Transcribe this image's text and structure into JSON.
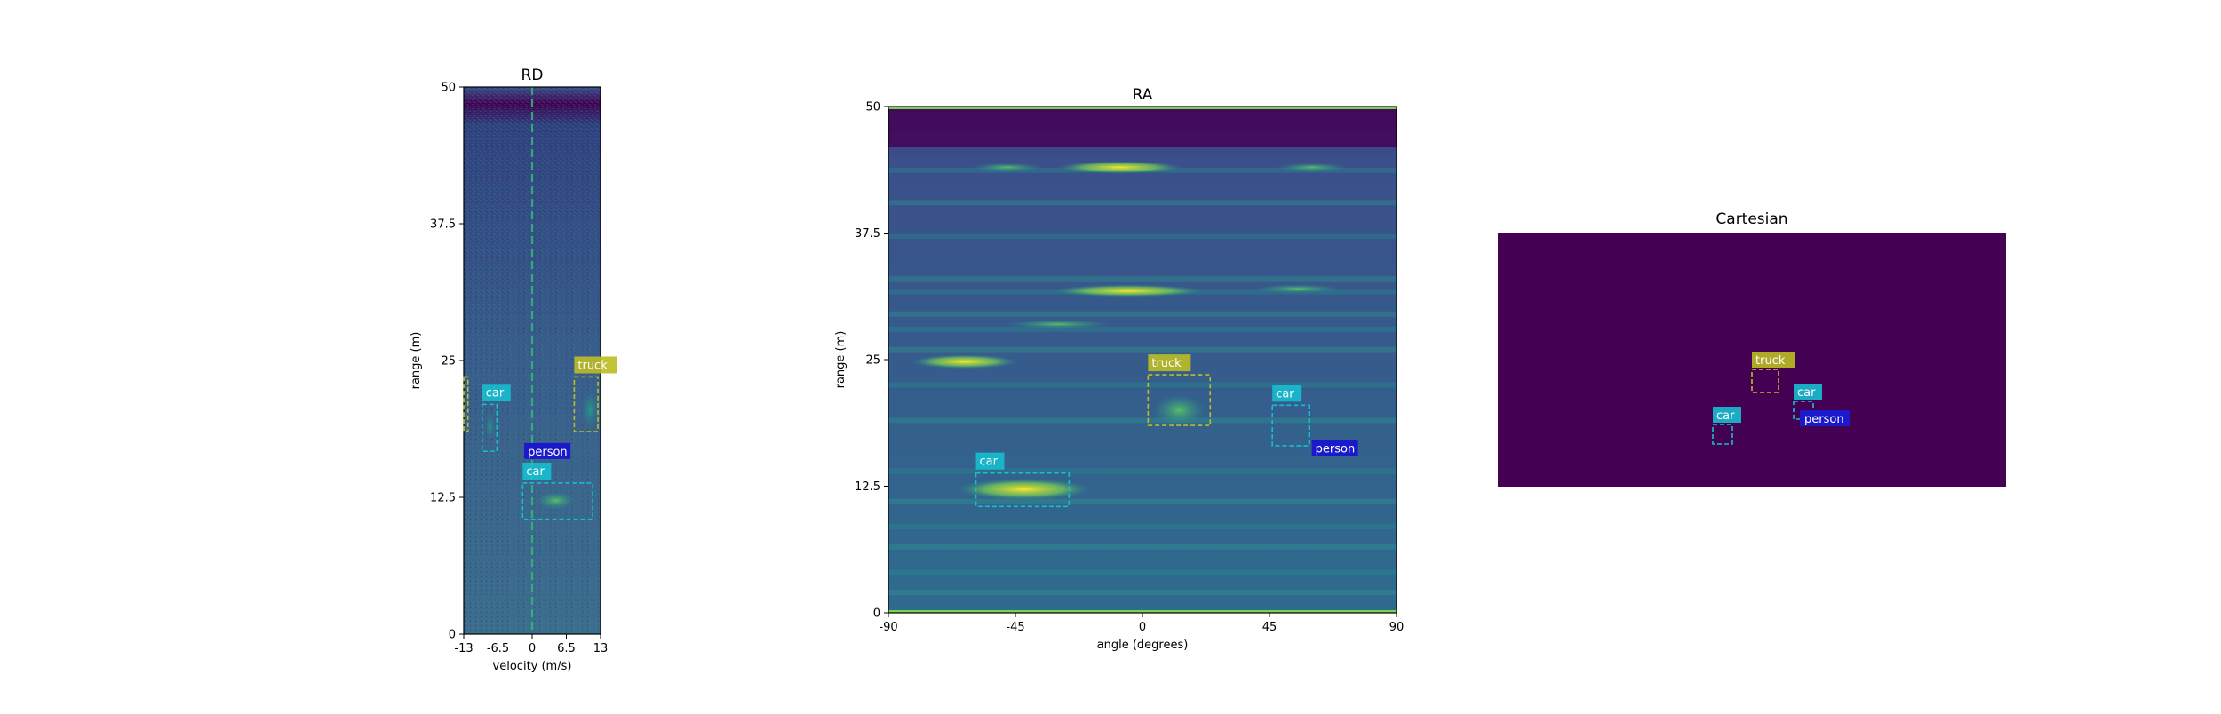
{
  "chart_data": [
    {
      "type": "heatmap",
      "title": "RD",
      "xlabel": "velocity (m/s)",
      "ylabel": "range (m)",
      "xlim": [
        -13,
        13
      ],
      "ylim": [
        0,
        50
      ],
      "xticks": [
        "-13",
        "-6.5",
        "0",
        "6.5",
        "13"
      ],
      "xtick_values": [
        -13,
        -6.5,
        0,
        6.5,
        13
      ],
      "yticks": [
        "0",
        "12.5",
        "25",
        "37.5",
        "50"
      ],
      "ytick_values": [
        0,
        12.5,
        25,
        37.5,
        50
      ],
      "colormap": "viridis",
      "annotations": [
        {
          "label": "car",
          "x": [
            -9.5,
            -6.7
          ],
          "y": [
            16.7,
            21.0
          ],
          "color": "#17becf"
        },
        {
          "label": "person",
          "x": [
            -1.5,
            2.0
          ],
          "y": [
            16.0,
            16.0
          ],
          "color": "#1a1acc"
        },
        {
          "label": "car",
          "x": [
            -1.8,
            11.5
          ],
          "y": [
            10.5,
            13.8
          ],
          "color": "#17becf"
        },
        {
          "label": "truck",
          "x": [
            8.0,
            12.5
          ],
          "y": [
            18.5,
            23.5
          ],
          "color": "#bcbd22"
        },
        {
          "label": "",
          "x": [
            -13.0,
            -12.2
          ],
          "y": [
            18.5,
            23.5
          ],
          "color": "#bcbd22"
        }
      ]
    },
    {
      "type": "heatmap",
      "title": "RA",
      "xlabel": "angle (degrees)",
      "ylabel": "range (m)",
      "xlim": [
        -90,
        90
      ],
      "ylim": [
        0,
        50
      ],
      "xticks": [
        "-90",
        "-45",
        "0",
        "45",
        "90"
      ],
      "xtick_values": [
        -90,
        -45,
        0,
        45,
        90
      ],
      "yticks": [
        "0",
        "12.5",
        "25",
        "37.5",
        "50"
      ],
      "ytick_values": [
        0,
        12.5,
        25,
        37.5,
        50
      ],
      "colormap": "viridis",
      "annotations": [
        {
          "label": "car",
          "x": [
            -59,
            -26
          ],
          "y": [
            10.5,
            13.8
          ],
          "color": "#17becf"
        },
        {
          "label": "truck",
          "x": [
            2,
            24
          ],
          "y": [
            18.5,
            23.5
          ],
          "color": "#bcbd22"
        },
        {
          "label": "car",
          "x": [
            46,
            59
          ],
          "y": [
            16.5,
            20.5
          ],
          "color": "#17becf"
        },
        {
          "label": "person",
          "x": [
            60,
            75
          ],
          "y": [
            15.5,
            15.5
          ],
          "color": "#1a1acc"
        }
      ]
    },
    {
      "type": "heatmap",
      "title": "Cartesian",
      "background_color": "#440154",
      "annotations": [
        {
          "label": "truck",
          "color": "#bcbd22"
        },
        {
          "label": "car",
          "color": "#17becf"
        },
        {
          "label": "car",
          "color": "#17becf"
        },
        {
          "label": "person",
          "color": "#1a1acc"
        }
      ]
    }
  ]
}
